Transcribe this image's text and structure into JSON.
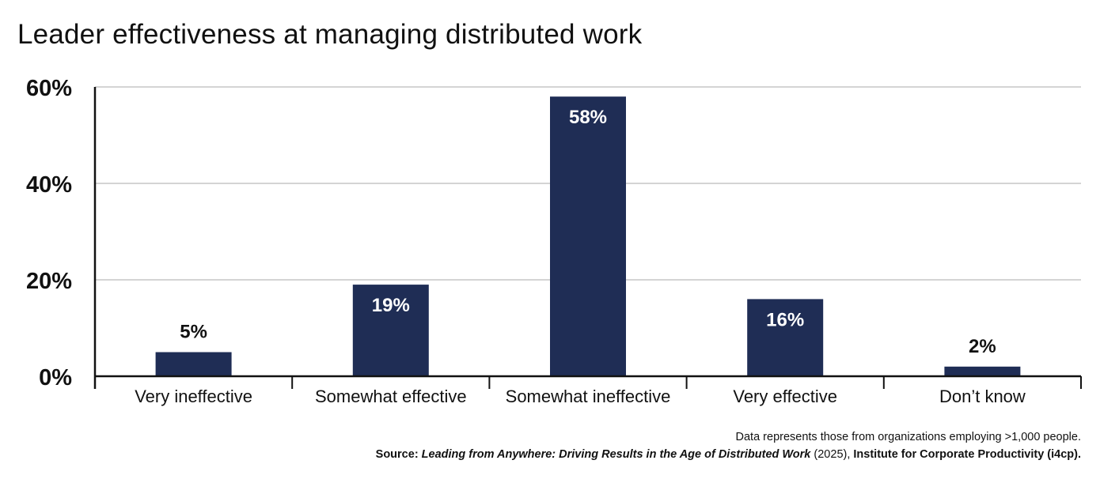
{
  "title": "Leader effectiveness at managing distributed work",
  "footer": {
    "note": "Data represents those from organizations employing >1,000 people.",
    "source_prefix": "Source: ",
    "source_work": "Leading from Anywhere: Driving Results in the Age of Distributed Work",
    "source_year": " (2025), ",
    "source_org": "Institute for Corporate Productivity (i4cp)."
  },
  "chart_data": {
    "type": "bar",
    "title": "Leader effectiveness at managing distributed work",
    "xlabel": "",
    "ylabel": "",
    "categories": [
      "Very ineffective",
      "Somewhat effective",
      "Somewhat ineffective",
      "Very effective",
      "Don’t know"
    ],
    "values": [
      5,
      19,
      58,
      16,
      2
    ],
    "value_labels": [
      "5%",
      "19%",
      "58%",
      "16%",
      "2%"
    ],
    "ylim": [
      0,
      60
    ],
    "yticks": [
      0,
      20,
      40,
      60
    ],
    "ytick_labels": [
      "0%",
      "20%",
      "40%",
      "60%"
    ],
    "grid": true,
    "bar_color": "#1f2d55",
    "grid_color": "#d4d4d4",
    "label_inside_color": "#ffffff",
    "label_outside_color": "#111111"
  }
}
